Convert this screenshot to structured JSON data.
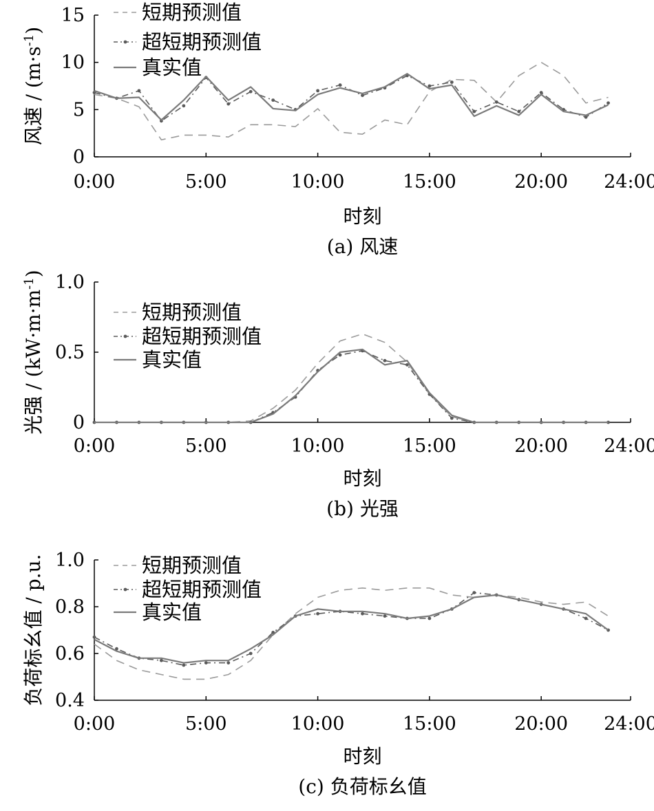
{
  "chart_data": [
    {
      "type": "line",
      "caption": "(a) 风速",
      "xlabel": "时刻",
      "ylabel_main": "风速 / (m·s",
      "ylabel_sup": "-1",
      "ylabel_close": ")",
      "ylim": [
        0,
        15
      ],
      "yticks": [
        0,
        5,
        10,
        15
      ],
      "ytick_labels": [
        "0",
        "5",
        "10",
        "15"
      ],
      "xlim": [
        0,
        24
      ],
      "xticks": [
        0,
        5,
        10,
        15,
        20,
        24
      ],
      "xtick_labels": [
        "0:00",
        "5:00",
        "10:00",
        "15:00",
        "20:00",
        "24:00"
      ],
      "grid": false,
      "legend_position": "top-left",
      "x": [
        0,
        1,
        2,
        3,
        4,
        5,
        6,
        7,
        8,
        9,
        10,
        11,
        12,
        13,
        14,
        15,
        16,
        17,
        18,
        19,
        20,
        21,
        22,
        23
      ],
      "series": [
        {
          "name": "短期预测值",
          "style": "dash",
          "values": [
            6.6,
            6.2,
            5.3,
            1.8,
            2.3,
            2.3,
            2.1,
            3.4,
            3.4,
            3.2,
            5.1,
            2.6,
            2.4,
            3.9,
            3.4,
            6.9,
            8.2,
            8.1,
            5.8,
            8.6,
            10.0,
            8.6,
            5.7,
            6.3
          ]
        },
        {
          "name": "超短期预测值",
          "style": "dashdot",
          "values": [
            6.8,
            6.2,
            7.0,
            3.8,
            5.4,
            8.4,
            5.6,
            6.9,
            6.0,
            5.0,
            7.0,
            7.6,
            6.5,
            7.3,
            8.6,
            7.5,
            7.9,
            4.8,
            5.8,
            4.8,
            6.8,
            5.0,
            4.2,
            5.7
          ]
        },
        {
          "name": "真实值",
          "style": "solid",
          "values": [
            7.0,
            6.2,
            6.3,
            3.9,
            6.0,
            8.5,
            6.0,
            7.4,
            5.1,
            4.9,
            6.6,
            7.3,
            6.7,
            7.4,
            8.8,
            7.2,
            7.6,
            4.3,
            5.4,
            4.4,
            6.6,
            4.8,
            4.4,
            5.5
          ]
        }
      ]
    },
    {
      "type": "line",
      "caption": "(b) 光强",
      "xlabel": "时刻",
      "ylabel_main": "光强 / (kW·m·m",
      "ylabel_sup": "-1",
      "ylabel_close": ")",
      "ylim": [
        0,
        1.0
      ],
      "yticks": [
        0,
        0.5,
        1.0
      ],
      "ytick_labels": [
        "0",
        "0.5",
        "1.0"
      ],
      "xlim": [
        0,
        24
      ],
      "xticks": [
        0,
        5,
        10,
        15,
        20,
        24
      ],
      "xtick_labels": [
        "0:00",
        "5:00",
        "10:00",
        "15:00",
        "20:00",
        "24:00"
      ],
      "grid": false,
      "legend_position": "top-left",
      "x": [
        0,
        1,
        2,
        3,
        4,
        5,
        6,
        7,
        8,
        9,
        10,
        11,
        12,
        13,
        14,
        15,
        16,
        17,
        18,
        19,
        20,
        21,
        22,
        23
      ],
      "series": [
        {
          "name": "短期预测值",
          "style": "dash",
          "values": [
            0,
            0,
            0,
            0,
            0,
            0,
            0,
            0.01,
            0.1,
            0.23,
            0.42,
            0.58,
            0.63,
            0.57,
            0.43,
            0.2,
            0.04,
            0,
            0,
            0,
            0,
            0,
            0,
            0
          ]
        },
        {
          "name": "超短期预测值",
          "style": "dashdot",
          "values": [
            0,
            0,
            0,
            0,
            0,
            0,
            0,
            0,
            0.07,
            0.18,
            0.37,
            0.48,
            0.51,
            0.44,
            0.41,
            0.2,
            0.03,
            0,
            0,
            0,
            0,
            0,
            0,
            0
          ]
        },
        {
          "name": "真实值",
          "style": "solid",
          "values": [
            0,
            0,
            0,
            0,
            0,
            0,
            0,
            0,
            0.06,
            0.19,
            0.36,
            0.5,
            0.52,
            0.41,
            0.44,
            0.21,
            0.05,
            0,
            0,
            0,
            0,
            0,
            0,
            0
          ]
        }
      ]
    },
    {
      "type": "line",
      "caption": "(c) 负荷标幺值",
      "xlabel": "时刻",
      "ylabel_main": "负荷标幺值 / p.u.",
      "ylabel_sup": "",
      "ylabel_close": "",
      "ylim": [
        0.4,
        1.0
      ],
      "yticks": [
        0.4,
        0.6,
        0.8,
        1.0
      ],
      "ytick_labels": [
        "0.4",
        "0.6",
        "0.8",
        "1.0"
      ],
      "xlim": [
        0,
        24
      ],
      "xticks": [
        0,
        5,
        10,
        15,
        20,
        24
      ],
      "xtick_labels": [
        "0:00",
        "5:00",
        "10:00",
        "15:00",
        "20:00",
        "24:00"
      ],
      "grid": false,
      "legend_position": "top-left",
      "x": [
        0,
        1,
        2,
        3,
        4,
        5,
        6,
        7,
        8,
        9,
        10,
        11,
        12,
        13,
        14,
        15,
        16,
        17,
        18,
        19,
        20,
        21,
        22,
        23
      ],
      "series": [
        {
          "name": "短期预测值",
          "style": "dash",
          "values": [
            0.64,
            0.57,
            0.53,
            0.51,
            0.49,
            0.49,
            0.51,
            0.57,
            0.68,
            0.77,
            0.84,
            0.87,
            0.88,
            0.87,
            0.88,
            0.88,
            0.85,
            0.84,
            0.85,
            0.84,
            0.82,
            0.81,
            0.82,
            0.76
          ]
        },
        {
          "name": "超短期预测值",
          "style": "dashdot",
          "values": [
            0.67,
            0.62,
            0.58,
            0.57,
            0.55,
            0.56,
            0.56,
            0.6,
            0.69,
            0.76,
            0.77,
            0.78,
            0.77,
            0.76,
            0.75,
            0.75,
            0.79,
            0.86,
            0.85,
            0.83,
            0.81,
            0.79,
            0.75,
            0.7
          ]
        },
        {
          "name": "真实值",
          "style": "solid",
          "values": [
            0.66,
            0.61,
            0.58,
            0.58,
            0.56,
            0.57,
            0.57,
            0.62,
            0.68,
            0.76,
            0.79,
            0.78,
            0.78,
            0.77,
            0.75,
            0.76,
            0.79,
            0.84,
            0.85,
            0.83,
            0.81,
            0.79,
            0.77,
            0.7
          ]
        }
      ]
    }
  ],
  "colors": {
    "short_term": "#9a9a9a",
    "ultra_short": "#5a5a5a",
    "actual": "#7a7a7a",
    "axis": "#000000"
  }
}
